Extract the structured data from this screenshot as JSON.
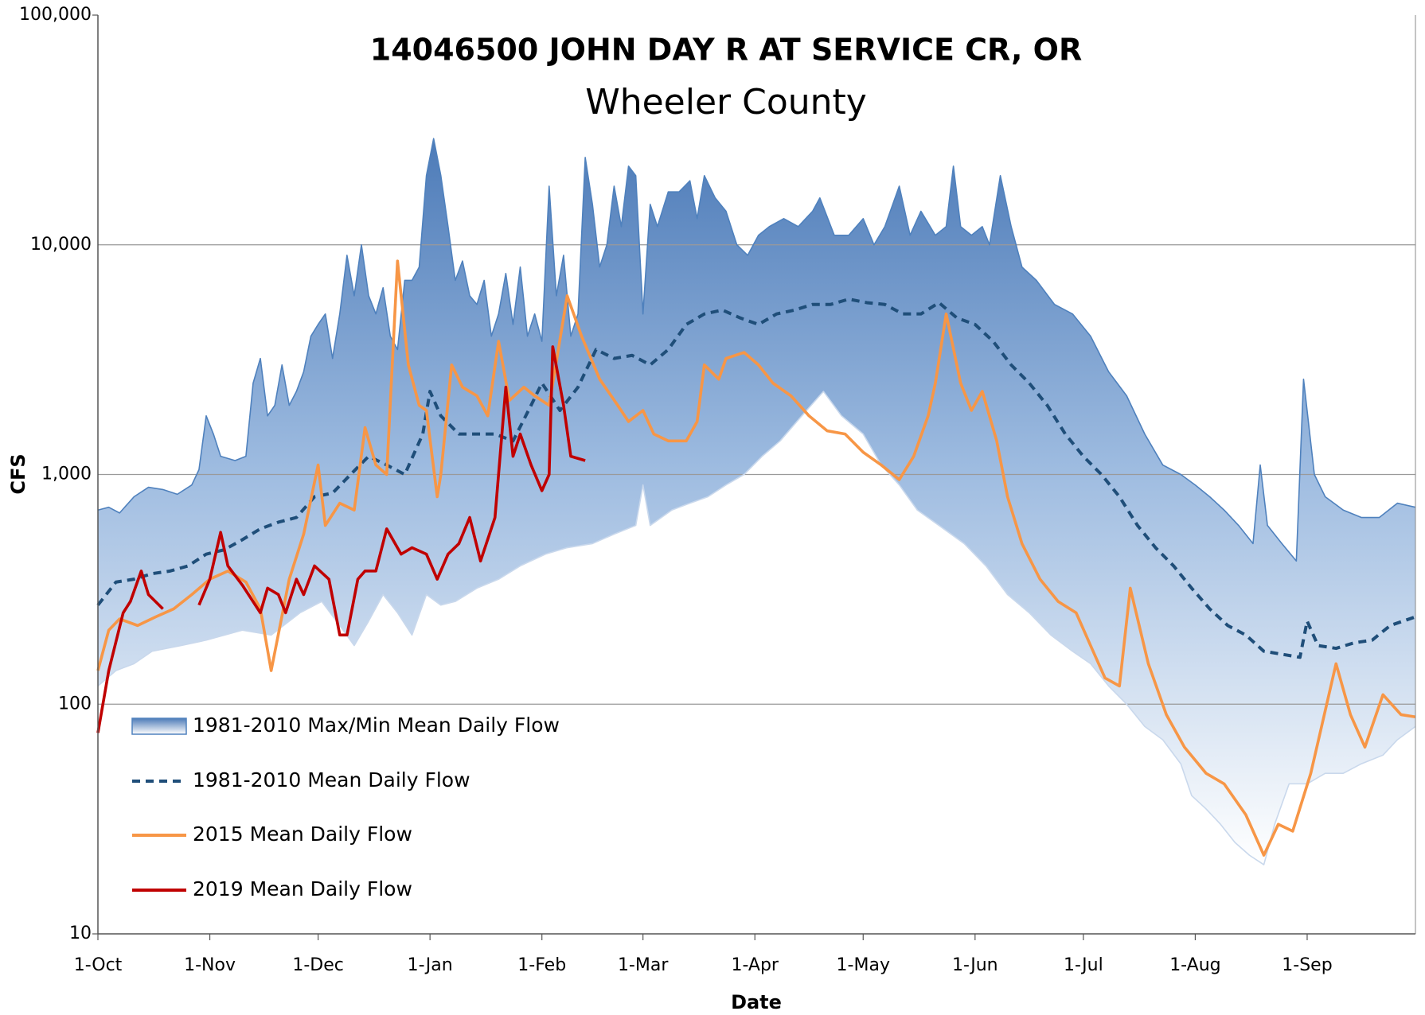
{
  "chart_data": {
    "type": "line",
    "title": "14046500 JOHN DAY R AT SERVICE CR, OR",
    "subtitle": "Wheeler County",
    "x_label": "Date",
    "y_label": "CFS",
    "log_scale": true,
    "grid": true,
    "legend": "lower left",
    "xlim": [
      0,
      365
    ],
    "xticks": [
      {
        "value": 0,
        "label": "1-Oct"
      },
      {
        "value": 31,
        "label": "1-Nov"
      },
      {
        "value": 61,
        "label": "1-Dec"
      },
      {
        "value": 92,
        "label": "1-Jan"
      },
      {
        "value": 123,
        "label": "1-Feb"
      },
      {
        "value": 151,
        "label": "1-Mar"
      },
      {
        "value": 182,
        "label": "1-Apr"
      },
      {
        "value": 212,
        "label": "1-May"
      },
      {
        "value": 243,
        "label": "1-Jun"
      },
      {
        "value": 273,
        "label": "1-Jul"
      },
      {
        "value": 304,
        "label": "1-Aug"
      },
      {
        "value": 335,
        "label": "1-Sep"
      }
    ],
    "ylim": [
      10,
      100000
    ],
    "yticks": [
      10,
      100,
      {
        "value": 1000,
        "label": "1,000"
      },
      {
        "value": 10000,
        "label": "10,000"
      },
      {
        "value": 100000,
        "label": "100,000"
      }
    ],
    "band": {
      "name": "1981-2010 Max/Min Mean Daily Flow",
      "color": "#4f81bd",
      "upper": {
        "x": [
          0,
          3,
          6,
          10,
          14,
          18,
          22,
          26,
          28,
          30,
          32,
          34,
          38,
          41,
          43,
          45,
          47,
          49,
          51,
          53,
          55,
          57,
          59,
          61,
          63,
          65,
          67,
          69,
          71,
          73,
          75,
          77,
          79,
          81,
          83,
          85,
          87,
          89,
          91,
          93,
          95,
          97,
          99,
          101,
          103,
          105,
          107,
          109,
          111,
          113,
          115,
          117,
          119,
          121,
          123,
          125,
          127,
          129,
          131,
          133,
          135,
          137,
          139,
          141,
          143,
          145,
          147,
          149,
          151,
          153,
          155,
          158,
          161,
          164,
          166,
          168,
          171,
          174,
          177,
          180,
          183,
          186,
          190,
          194,
          198,
          200,
          204,
          208,
          212,
          215,
          218,
          222,
          225,
          228,
          232,
          235,
          237,
          239,
          242,
          245,
          247,
          250,
          253,
          256,
          260,
          265,
          270,
          275,
          280,
          285,
          290,
          295,
          300,
          304,
          308,
          312,
          316,
          320,
          322,
          324,
          328,
          332,
          334,
          337,
          340,
          345,
          350,
          355,
          360,
          365
        ],
        "values": [
          700,
          720,
          680,
          800,
          880,
          860,
          820,
          900,
          1050,
          1800,
          1500,
          1200,
          1150,
          1200,
          2500,
          3200,
          1800,
          2000,
          3000,
          2000,
          2300,
          2800,
          4000,
          4500,
          5000,
          3200,
          5000,
          9000,
          6000,
          10000,
          6000,
          5000,
          6500,
          4000,
          3500,
          7000,
          7000,
          8000,
          20000,
          29000,
          20000,
          12000,
          7000,
          8500,
          6000,
          5500,
          7000,
          4000,
          5000,
          7500,
          4500,
          8000,
          4000,
          5000,
          3800,
          18000,
          6000,
          9000,
          4000,
          5000,
          24000,
          15000,
          8000,
          10000,
          18000,
          12000,
          22000,
          20000,
          5000,
          15000,
          12000,
          17000,
          17000,
          19000,
          13000,
          20000,
          16000,
          14000,
          10000,
          9000,
          11000,
          12000,
          13000,
          12000,
          14000,
          16000,
          11000,
          11000,
          13000,
          10000,
          12000,
          18000,
          11000,
          14000,
          11000,
          12000,
          22000,
          12000,
          11000,
          12000,
          10000,
          20000,
          12000,
          8000,
          7000,
          5500,
          5000,
          4000,
          2800,
          2200,
          1500,
          1100,
          1000,
          900,
          800,
          700,
          600,
          500,
          1100,
          600,
          500,
          420,
          2600,
          1000,
          800,
          700,
          650,
          650,
          750,
          720
        ]
      },
      "lower": {
        "x": [
          0,
          5,
          10,
          15,
          23,
          30,
          40,
          48,
          56,
          62,
          67,
          71,
          75,
          79,
          83,
          87,
          91,
          95,
          99,
          105,
          111,
          117,
          124,
          130,
          137,
          143,
          149,
          151,
          153,
          159,
          164,
          169,
          174,
          179,
          184,
          189,
          195,
          201,
          206,
          212,
          217,
          222,
          227,
          233,
          240,
          246,
          252,
          258,
          264,
          270,
          275,
          280,
          285,
          290,
          295,
          300,
          303,
          307,
          311,
          315,
          319,
          323,
          326,
          330,
          335,
          340,
          345,
          350,
          356,
          360,
          365
        ],
        "values": [
          120,
          140,
          150,
          170,
          180,
          190,
          210,
          200,
          250,
          280,
          220,
          180,
          230,
          300,
          250,
          200,
          300,
          270,
          280,
          320,
          350,
          400,
          450,
          480,
          500,
          550,
          600,
          900,
          600,
          700,
          750,
          800,
          900,
          1000,
          1200,
          1400,
          1800,
          2300,
          1800,
          1500,
          1100,
          900,
          700,
          600,
          500,
          400,
          300,
          250,
          200,
          170,
          150,
          120,
          100,
          80,
          70,
          55,
          40,
          35,
          30,
          25,
          22,
          20,
          30,
          45,
          45,
          50,
          50,
          55,
          60,
          70,
          80
        ]
      }
    },
    "series": [
      {
        "name": "1981-2010 Mean Daily Flow",
        "color": "#1f4e79",
        "dashed": true,
        "x": [
          0,
          5,
          10,
          15,
          20,
          25,
          30,
          35,
          40,
          45,
          50,
          55,
          60,
          65,
          70,
          75,
          80,
          85,
          90,
          92,
          95,
          100,
          105,
          110,
          115,
          120,
          123,
          128,
          133,
          138,
          143,
          148,
          153,
          158,
          163,
          168,
          173,
          178,
          183,
          188,
          193,
          198,
          203,
          208,
          213,
          218,
          223,
          228,
          233,
          238,
          243,
          248,
          253,
          258,
          263,
          268,
          273,
          278,
          283,
          288,
          293,
          298,
          303,
          308,
          313,
          318,
          323,
          328,
          333,
          335,
          338,
          343,
          348,
          353,
          358,
          365
        ],
        "values": [
          270,
          340,
          350,
          370,
          380,
          400,
          450,
          470,
          520,
          580,
          620,
          650,
          800,
          830,
          1000,
          1200,
          1100,
          1000,
          1500,
          2300,
          1800,
          1500,
          1500,
          1500,
          1400,
          2000,
          2500,
          1900,
          2400,
          3500,
          3200,
          3300,
          3000,
          3500,
          4500,
          5000,
          5200,
          4800,
          4500,
          5000,
          5200,
          5500,
          5500,
          5800,
          5600,
          5500,
          5000,
          5000,
          5600,
          4800,
          4500,
          3800,
          3000,
          2500,
          2000,
          1500,
          1200,
          1000,
          800,
          600,
          480,
          400,
          320,
          260,
          220,
          200,
          170,
          165,
          160,
          230,
          180,
          175,
          185,
          190,
          220,
          240
        ]
      },
      {
        "name": "2015 Mean Daily Flow",
        "color": "#f79646",
        "dashed": false,
        "x": [
          0,
          3,
          6,
          11,
          16,
          21,
          26,
          31,
          36,
          41,
          45,
          48,
          53,
          57,
          61,
          63,
          67,
          71,
          74,
          77,
          80,
          83,
          86,
          89,
          91,
          94,
          95,
          98,
          101,
          105,
          108,
          111,
          114,
          118,
          121,
          125,
          130,
          134,
          139,
          144,
          147,
          151,
          154,
          158,
          163,
          166,
          168,
          172,
          174,
          179,
          183,
          187,
          192,
          197,
          202,
          207,
          212,
          217,
          222,
          226,
          230,
          232,
          235,
          239,
          242,
          245,
          249,
          252,
          256,
          261,
          266,
          271,
          275,
          279,
          283,
          286,
          291,
          296,
          301,
          307,
          312,
          318,
          323,
          327,
          331,
          336,
          339,
          343,
          347,
          351,
          356,
          361,
          365
        ],
        "values": [
          140,
          210,
          235,
          220,
          240,
          260,
          300,
          350,
          380,
          340,
          260,
          140,
          350,
          550,
          1100,
          600,
          750,
          700,
          1600,
          1100,
          1000,
          8500,
          3000,
          2000,
          1900,
          800,
          1000,
          3000,
          2400,
          2200,
          1800,
          3800,
          2100,
          2400,
          2200,
          2000,
          6000,
          4000,
          2600,
          2000,
          1700,
          1900,
          1500,
          1400,
          1400,
          1700,
          3000,
          2600,
          3200,
          3400,
          3000,
          2500,
          2200,
          1800,
          1550,
          1500,
          1250,
          1100,
          950,
          1200,
          1800,
          2500,
          5000,
          2500,
          1900,
          2300,
          1400,
          800,
          500,
          350,
          280,
          250,
          180,
          130,
          120,
          320,
          150,
          90,
          65,
          50,
          45,
          33,
          22,
          30,
          28,
          50,
          80,
          150,
          90,
          65,
          110,
          90,
          88
        ]
      },
      {
        "name": "2019 Mean Daily Flow",
        "color": "#c00000",
        "dashed": false,
        "x": [
          0,
          3,
          7,
          9,
          12,
          14,
          18,
          23,
          28,
          31,
          34,
          36,
          40,
          45,
          47,
          50,
          52,
          55,
          57,
          60,
          64,
          67,
          69,
          72,
          74,
          77,
          80,
          84,
          87,
          91,
          94,
          97,
          100,
          103,
          106,
          110,
          113,
          115,
          117,
          120,
          123,
          125,
          126,
          129,
          131,
          135
        ],
        "values": [
          75,
          140,
          250,
          280,
          380,
          300,
          260,
          null,
          270,
          350,
          560,
          400,
          330,
          250,
          320,
          300,
          250,
          350,
          300,
          400,
          350,
          200,
          200,
          350,
          380,
          380,
          580,
          450,
          480,
          450,
          350,
          450,
          500,
          650,
          420,
          650,
          2400,
          1200,
          1500,
          1100,
          850,
          1000,
          3600,
          2000,
          1200,
          1150
        ]
      }
    ]
  }
}
